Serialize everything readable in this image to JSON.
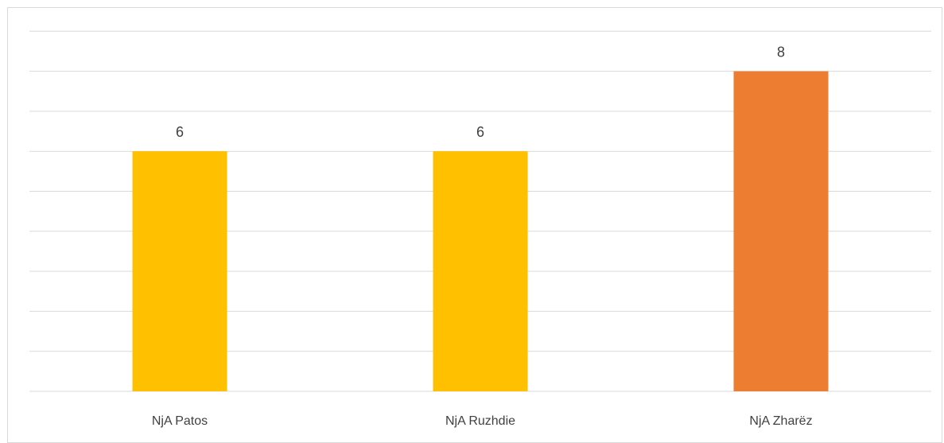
{
  "chart_data": {
    "type": "bar",
    "categories": [
      "NjA Patos",
      "NjA Ruzhdie",
      "NjA Zharëz"
    ],
    "values": [
      6,
      6,
      8
    ],
    "bar_colors": [
      "#ffc000",
      "#ffc000",
      "#ed7d31"
    ],
    "ylim": [
      0,
      9
    ],
    "grid": true,
    "data_labels": true,
    "legend": "none"
  },
  "colors": {
    "gridline": "#d9d9d9",
    "text": "#404040",
    "frame": "#d9d9d9"
  }
}
